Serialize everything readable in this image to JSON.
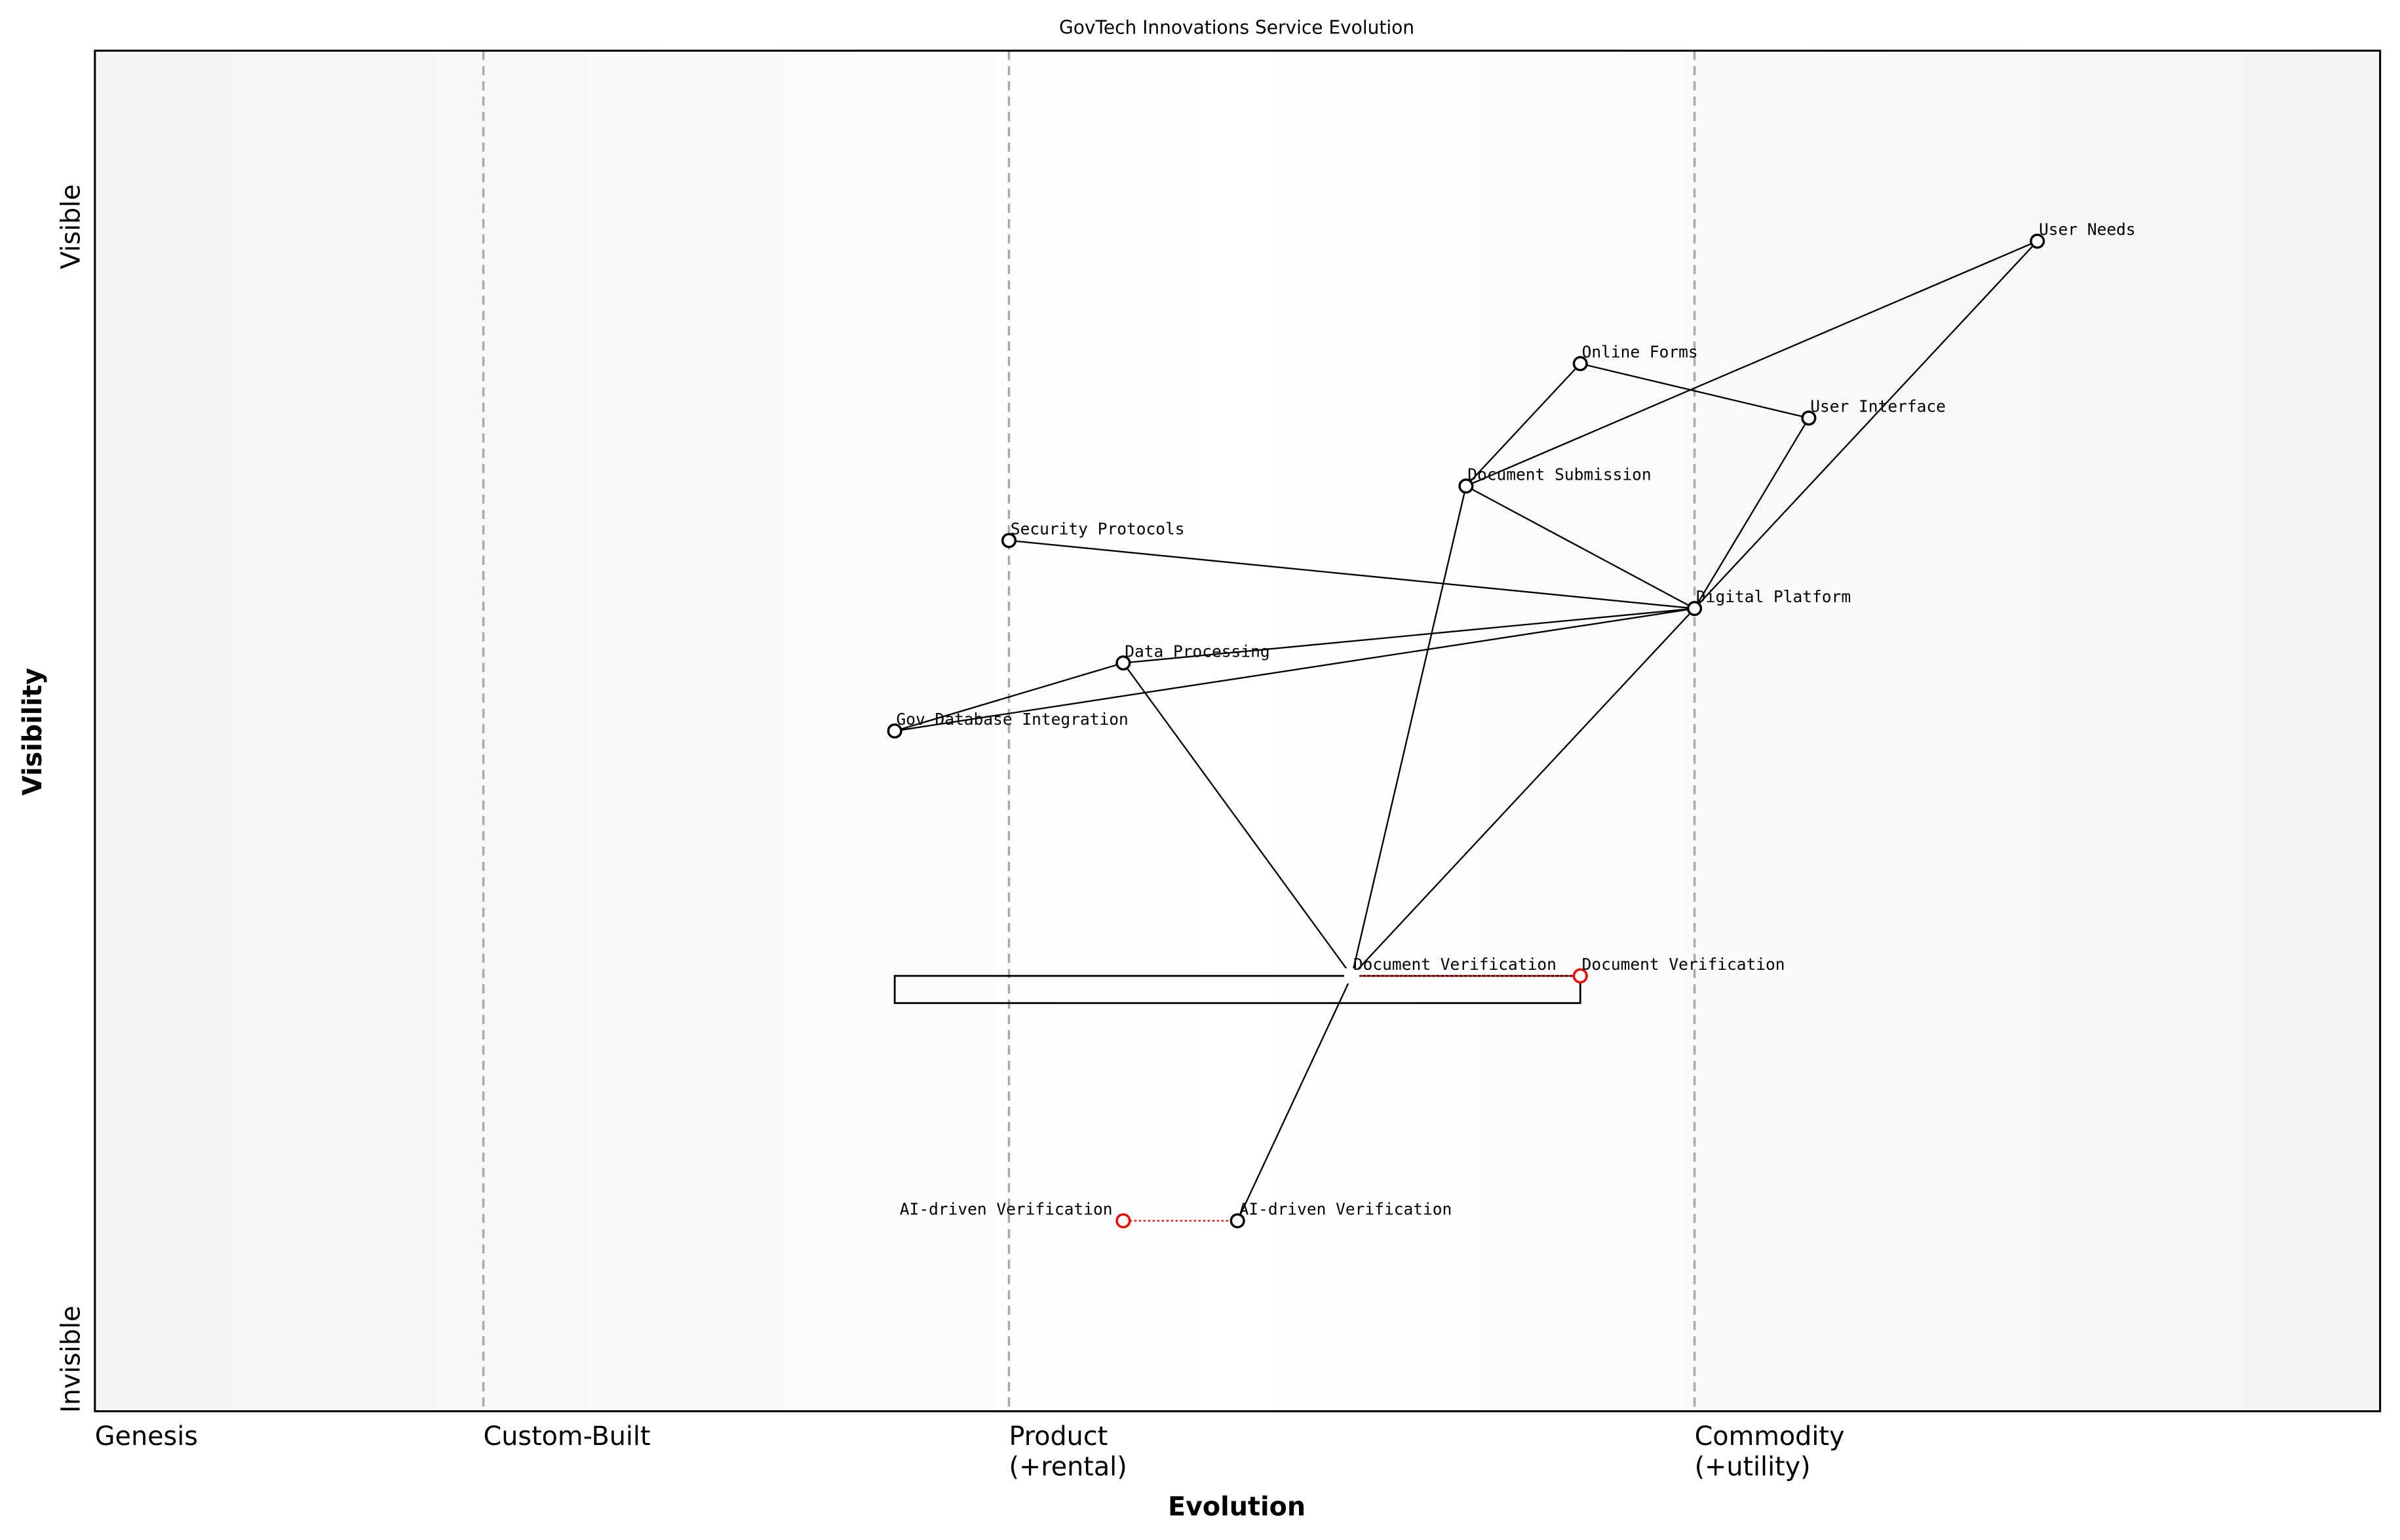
{
  "chart_data": {
    "type": "scatter",
    "title": "GovTech Innovations Service Evolution",
    "xlabel": "Evolution",
    "ylabel": "Visibility",
    "xlim": [
      0,
      1
    ],
    "ylim": [
      0,
      1
    ],
    "grid": false,
    "y_tick_labels": {
      "top": "Visible",
      "bottom": "Invisible"
    },
    "stages": [
      {
        "label": "Genesis",
        "x": 0.0
      },
      {
        "label": "Custom-Built",
        "x": 0.17
      },
      {
        "label": "Product\n(+rental)",
        "x": 0.4
      },
      {
        "label": "Commodity\n(+utility)",
        "x": 0.7
      }
    ],
    "components": [
      {
        "id": "user_needs",
        "label": "User Needs",
        "x": 0.85,
        "y": 0.86
      },
      {
        "id": "online_forms",
        "label": "Online Forms",
        "x": 0.65,
        "y": 0.77
      },
      {
        "id": "user_interface",
        "label": "User Interface",
        "x": 0.75,
        "y": 0.73
      },
      {
        "id": "document_submission",
        "label": "Document Submission",
        "x": 0.6,
        "y": 0.68
      },
      {
        "id": "security_protocols",
        "label": "Security Protocols",
        "x": 0.4,
        "y": 0.64
      },
      {
        "id": "digital_platform",
        "label": "Digital Platform",
        "x": 0.7,
        "y": 0.59
      },
      {
        "id": "data_processing",
        "label": "Data Processing",
        "x": 0.45,
        "y": 0.55
      },
      {
        "id": "gov_database",
        "label": "Gov Database Integration",
        "x": 0.35,
        "y": 0.5
      },
      {
        "id": "document_verification",
        "label": "Document Verification",
        "x": 0.55,
        "y": 0.32,
        "hidden_marker": true
      },
      {
        "id": "ai_verification",
        "label": "AI-driven Verification",
        "x": 0.5,
        "y": 0.14
      }
    ],
    "evolutions": [
      {
        "from": "document_verification",
        "label": "Document Verification",
        "x": 0.65,
        "y": 0.32
      },
      {
        "from": "ai_verification",
        "label": "AI-driven Verification",
        "x": 0.45,
        "y": 0.14
      }
    ],
    "links": [
      [
        "user_needs",
        "digital_platform"
      ],
      [
        "user_needs",
        "document_submission"
      ],
      [
        "online_forms",
        "user_interface"
      ],
      [
        "online_forms",
        "document_submission"
      ],
      [
        "user_interface",
        "digital_platform"
      ],
      [
        "document_submission",
        "digital_platform"
      ],
      [
        "document_submission",
        "document_verification"
      ],
      [
        "security_protocols",
        "digital_platform"
      ],
      [
        "data_processing",
        "digital_platform"
      ],
      [
        "data_processing",
        "document_verification"
      ],
      [
        "gov_database",
        "data_processing"
      ],
      [
        "gov_database",
        "digital_platform"
      ],
      [
        "digital_platform",
        "document_verification"
      ],
      [
        "document_verification",
        "ai_verification"
      ]
    ],
    "pipeline": {
      "x_start": 0.35,
      "x_end": 0.65,
      "y_top": 0.32,
      "y_bottom": 0.3
    },
    "colors": {
      "node": "#000000",
      "evolution": "#ff0000",
      "stage_line": "#aaaaaa",
      "edge_bg": "#f4f4f4",
      "center_bg": "#ffffff"
    }
  }
}
